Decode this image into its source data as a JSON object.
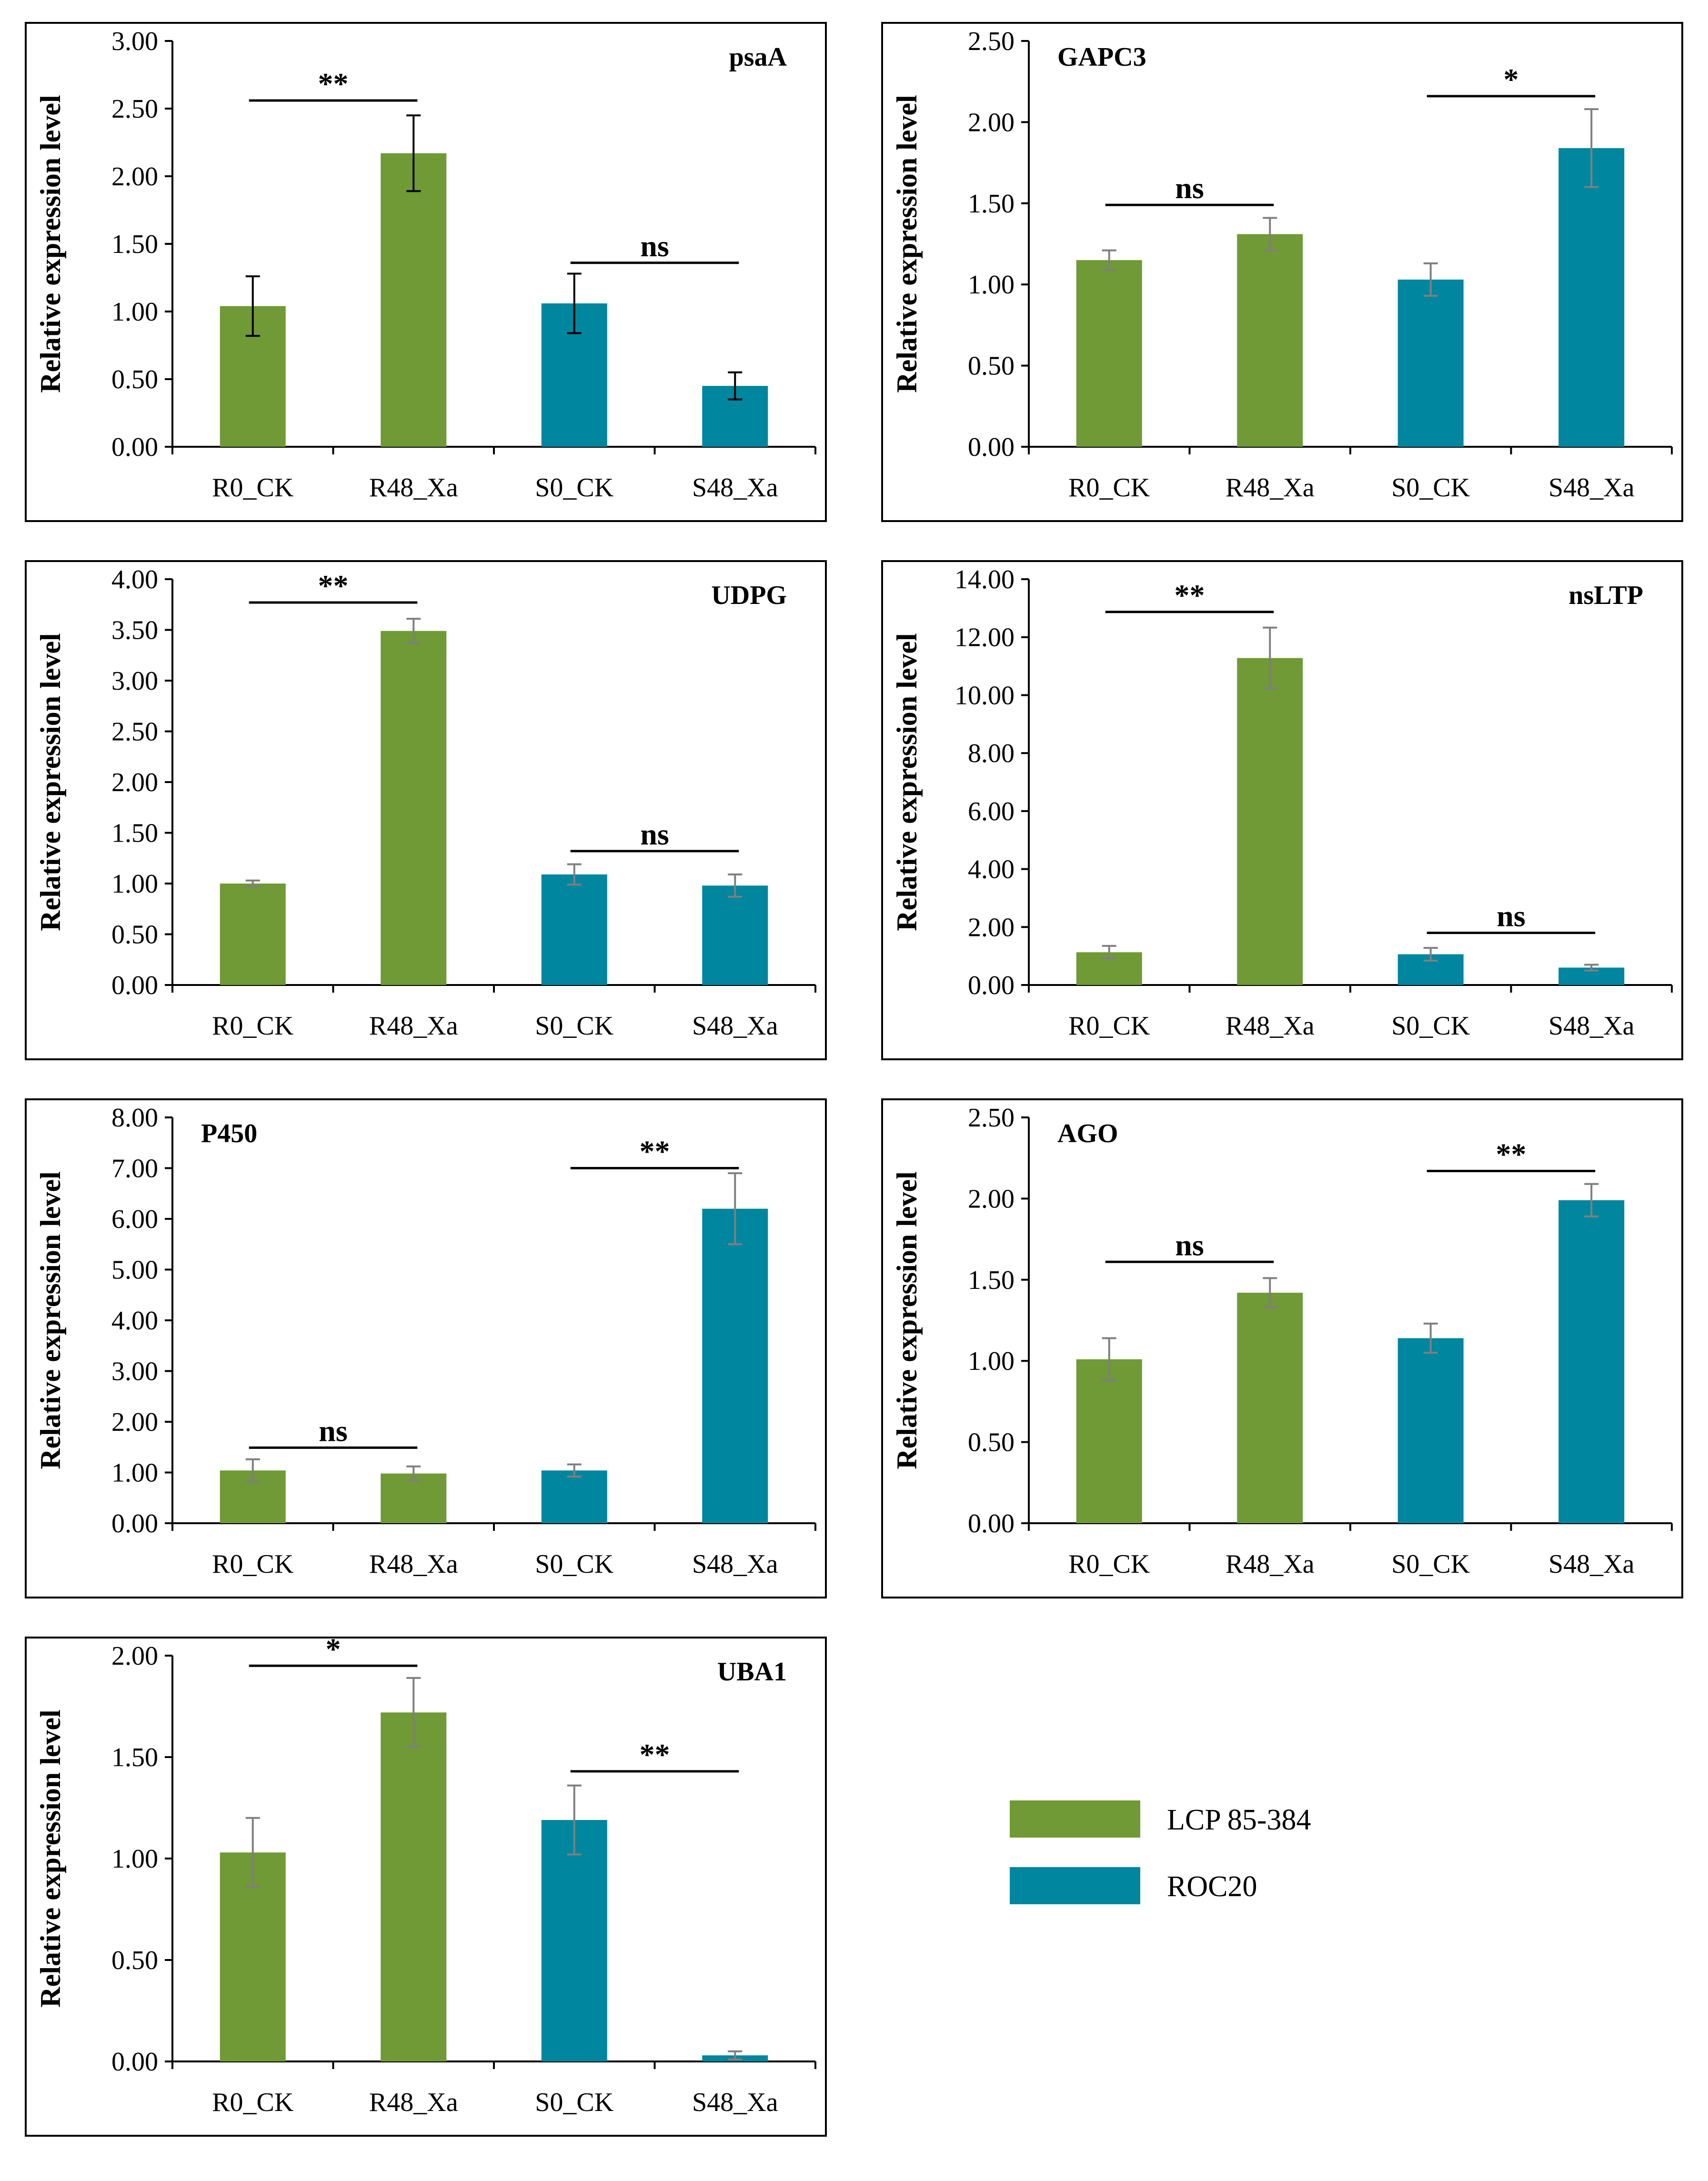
{
  "figure": {
    "legend": [
      {
        "label": "LCP 85-384",
        "color": "#6f9a35"
      },
      {
        "label": "ROC20",
        "color": "#00869e"
      }
    ]
  },
  "chart_data": [
    {
      "type": "bar",
      "title": "psaA",
      "ylabel": "Relative expression level",
      "categories": [
        "R0_CK",
        "R48_Xa",
        "S0_CK",
        "S48_Xa"
      ],
      "values": [
        1.04,
        2.17,
        1.06,
        0.45
      ],
      "errors": [
        0.22,
        0.28,
        0.22,
        0.1
      ],
      "error_color": "#000000",
      "colors": [
        "#6f9a35",
        "#6f9a35",
        "#00869e",
        "#00869e"
      ],
      "ylim": [
        0,
        3
      ],
      "yticks": [
        0,
        0.5,
        1,
        1.5,
        2,
        2.5,
        3
      ],
      "ytick_labels": [
        "0.00",
        "0.50",
        "1.00",
        "1.50",
        "2.00",
        "2.50",
        "3.00"
      ],
      "significance": [
        {
          "from": 0,
          "to": 1,
          "label": "**",
          "y": 2.56
        },
        {
          "from": 2,
          "to": 3,
          "label": "ns",
          "y": 1.36
        }
      ]
    },
    {
      "type": "bar",
      "title": "GAPC3",
      "ylabel": "Relative expression level",
      "categories": [
        "R0_CK",
        "R48_Xa",
        "S0_CK",
        "S48_Xa"
      ],
      "values": [
        1.15,
        1.31,
        1.03,
        1.84
      ],
      "errors": [
        0.06,
        0.1,
        0.1,
        0.24
      ],
      "error_color": "#7f7f7f",
      "colors": [
        "#6f9a35",
        "#6f9a35",
        "#00869e",
        "#00869e"
      ],
      "ylim": [
        0,
        2.5
      ],
      "yticks": [
        0,
        0.5,
        1,
        1.5,
        2,
        2.5
      ],
      "ytick_labels": [
        "0.00",
        "0.50",
        "1.00",
        "1.50",
        "2.00",
        "2.50"
      ],
      "significance": [
        {
          "from": 0,
          "to": 1,
          "label": "ns",
          "y": 1.49
        },
        {
          "from": 2,
          "to": 3,
          "label": "*",
          "y": 2.16
        }
      ]
    },
    {
      "type": "bar",
      "title": "UDPG",
      "ylabel": "Relative expression level",
      "categories": [
        "R0_CK",
        "R48_Xa",
        "S0_CK",
        "S48_Xa"
      ],
      "values": [
        1.0,
        3.49,
        1.09,
        0.98
      ],
      "errors": [
        0.03,
        0.12,
        0.1,
        0.11
      ],
      "error_color": "#7f7f7f",
      "colors": [
        "#6f9a35",
        "#6f9a35",
        "#00869e",
        "#00869e"
      ],
      "ylim": [
        0,
        4
      ],
      "yticks": [
        0,
        0.5,
        1,
        1.5,
        2,
        2.5,
        3,
        3.5,
        4
      ],
      "ytick_labels": [
        "0.00",
        "0.50",
        "1.00",
        "1.50",
        "2.00",
        "2.50",
        "3.00",
        "3.50",
        "4.00"
      ],
      "significance": [
        {
          "from": 0,
          "to": 1,
          "label": "**",
          "y": 3.77
        },
        {
          "from": 2,
          "to": 3,
          "label": "ns",
          "y": 1.32
        }
      ]
    },
    {
      "type": "bar",
      "title": "nsLTP",
      "ylabel": "Relative expression level",
      "categories": [
        "R0_CK",
        "R48_Xa",
        "S0_CK",
        "S48_Xa"
      ],
      "values": [
        1.13,
        11.28,
        1.06,
        0.6
      ],
      "errors": [
        0.22,
        1.05,
        0.22,
        0.1
      ],
      "error_color": "#7f7f7f",
      "colors": [
        "#6f9a35",
        "#6f9a35",
        "#00869e",
        "#00869e"
      ],
      "ylim": [
        0,
        14
      ],
      "yticks": [
        0,
        2,
        4,
        6,
        8,
        10,
        12,
        14
      ],
      "ytick_labels": [
        "0.00",
        "2.00",
        "4.00",
        "6.00",
        "8.00",
        "10.00",
        "12.00",
        "14.00"
      ],
      "significance": [
        {
          "from": 0,
          "to": 1,
          "label": "**",
          "y": 12.87
        },
        {
          "from": 2,
          "to": 3,
          "label": "ns",
          "y": 1.8
        }
      ]
    },
    {
      "type": "bar",
      "title": "P450",
      "ylabel": "Relative expression level",
      "categories": [
        "R0_CK",
        "R48_Xa",
        "S0_CK",
        "S48_Xa"
      ],
      "values": [
        1.04,
        0.98,
        1.04,
        6.2
      ],
      "errors": [
        0.22,
        0.14,
        0.12,
        0.7
      ],
      "error_color": "#7f7f7f",
      "colors": [
        "#6f9a35",
        "#6f9a35",
        "#00869e",
        "#00869e"
      ],
      "ylim": [
        0,
        8
      ],
      "yticks": [
        0,
        1,
        2,
        3,
        4,
        5,
        6,
        7,
        8
      ],
      "ytick_labels": [
        "0.00",
        "1.00",
        "2.00",
        "3.00",
        "4.00",
        "5.00",
        "6.00",
        "7.00",
        "8.00"
      ],
      "significance": [
        {
          "from": 0,
          "to": 1,
          "label": "ns",
          "y": 1.49
        },
        {
          "from": 2,
          "to": 3,
          "label": "**",
          "y": 7.0
        }
      ]
    },
    {
      "type": "bar",
      "title": "AGO",
      "ylabel": "Relative expression level",
      "categories": [
        "R0_CK",
        "R48_Xa",
        "S0_CK",
        "S48_Xa"
      ],
      "values": [
        1.01,
        1.42,
        1.14,
        1.99
      ],
      "errors": [
        0.13,
        0.09,
        0.09,
        0.1
      ],
      "error_color": "#7f7f7f",
      "colors": [
        "#6f9a35",
        "#6f9a35",
        "#00869e",
        "#00869e"
      ],
      "ylim": [
        0,
        2.5
      ],
      "yticks": [
        0,
        0.5,
        1,
        1.5,
        2,
        2.5
      ],
      "ytick_labels": [
        "0.00",
        "0.50",
        "1.00",
        "1.50",
        "2.00",
        "2.50"
      ],
      "significance": [
        {
          "from": 0,
          "to": 1,
          "label": "ns",
          "y": 1.61
        },
        {
          "from": 2,
          "to": 3,
          "label": "**",
          "y": 2.17
        }
      ]
    },
    {
      "type": "bar",
      "title": "UBA1",
      "ylabel": "Relative expression level",
      "categories": [
        "R0_CK",
        "R48_Xa",
        "S0_CK",
        "S48_Xa"
      ],
      "values": [
        1.03,
        1.72,
        1.19,
        0.03
      ],
      "errors": [
        0.17,
        0.17,
        0.17,
        0.02
      ],
      "error_color": "#7f7f7f",
      "colors": [
        "#6f9a35",
        "#6f9a35",
        "#00869e",
        "#00869e"
      ],
      "ylim": [
        0,
        2
      ],
      "yticks": [
        0,
        0.5,
        1,
        1.5,
        2
      ],
      "ytick_labels": [
        "0.00",
        "0.50",
        "1.00",
        "1.50",
        "2.00"
      ],
      "significance": [
        {
          "from": 0,
          "to": 1,
          "label": "*",
          "y": 1.95
        },
        {
          "from": 2,
          "to": 3,
          "label": "**",
          "y": 1.43
        }
      ]
    }
  ]
}
